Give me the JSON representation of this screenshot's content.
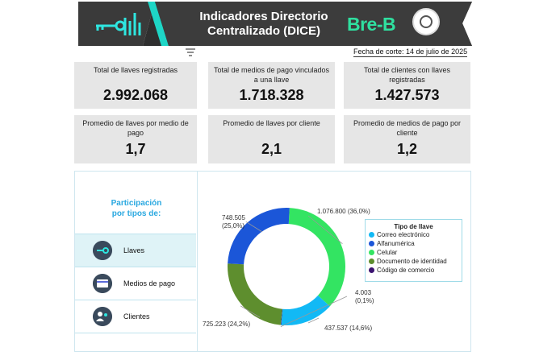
{
  "header": {
    "title_line1": "Indicadores Directorio",
    "title_line2": "Centralizado (DICE)",
    "brand": "Bre-B",
    "cutoff_date": "Fecha de corte: 14 de julio de 2025"
  },
  "kpis": [
    {
      "label": "Total de llaves registradas",
      "value": "2.992.068"
    },
    {
      "label": "Total de medios de pago vinculados a una llave",
      "value": "1.718.328"
    },
    {
      "label": "Total de clientes con llaves registradas",
      "value": "1.427.573"
    },
    {
      "label": "Promedio de llaves por medio de pago",
      "value": "1,7"
    },
    {
      "label": "Promedio de llaves por cliente",
      "value": "2,1"
    },
    {
      "label": "Promedio de medios de pago por cliente",
      "value": "1,2"
    }
  ],
  "sidebar": {
    "title_line1": "Participación",
    "title_line2": "por tipos de:",
    "items": [
      {
        "label": "Llaves",
        "icon": "key-icon",
        "active": true
      },
      {
        "label": "Medios de pago",
        "icon": "payment-card-icon",
        "active": false
      },
      {
        "label": "Clientes",
        "icon": "users-icon",
        "active": false
      }
    ]
  },
  "chart_data": {
    "type": "pie",
    "donut": true,
    "legend_title": "Tipo de llave",
    "legend_position": "right",
    "slices": [
      {
        "name": "Celular",
        "value": 1076800,
        "label_value": "1.076.800",
        "label_pct": "(36,0%)",
        "color": "#33e462"
      },
      {
        "name": "Correo electrónico",
        "value": 437537,
        "label_value": "437.537",
        "label_pct": "(14,6%)",
        "color": "#12b9f5"
      },
      {
        "name": "Código de comercio",
        "value": 4003,
        "label_value": "4.003",
        "label_pct": "(0,1%)",
        "color": "#3b1370"
      },
      {
        "name": "Documento de identidad",
        "value": 725223,
        "label_value": "725.223",
        "label_pct": "(24,2%)",
        "color": "#5e8e2e"
      },
      {
        "name": "Alfanumérica",
        "value": 748505,
        "label_value": "748.505",
        "label_pct": "(25,0%)",
        "color": "#1b56d8"
      }
    ],
    "legend_order": [
      "Correo electrónico",
      "Alfanumérica",
      "Celular",
      "Documento de identidad",
      "Código de comercio"
    ]
  }
}
